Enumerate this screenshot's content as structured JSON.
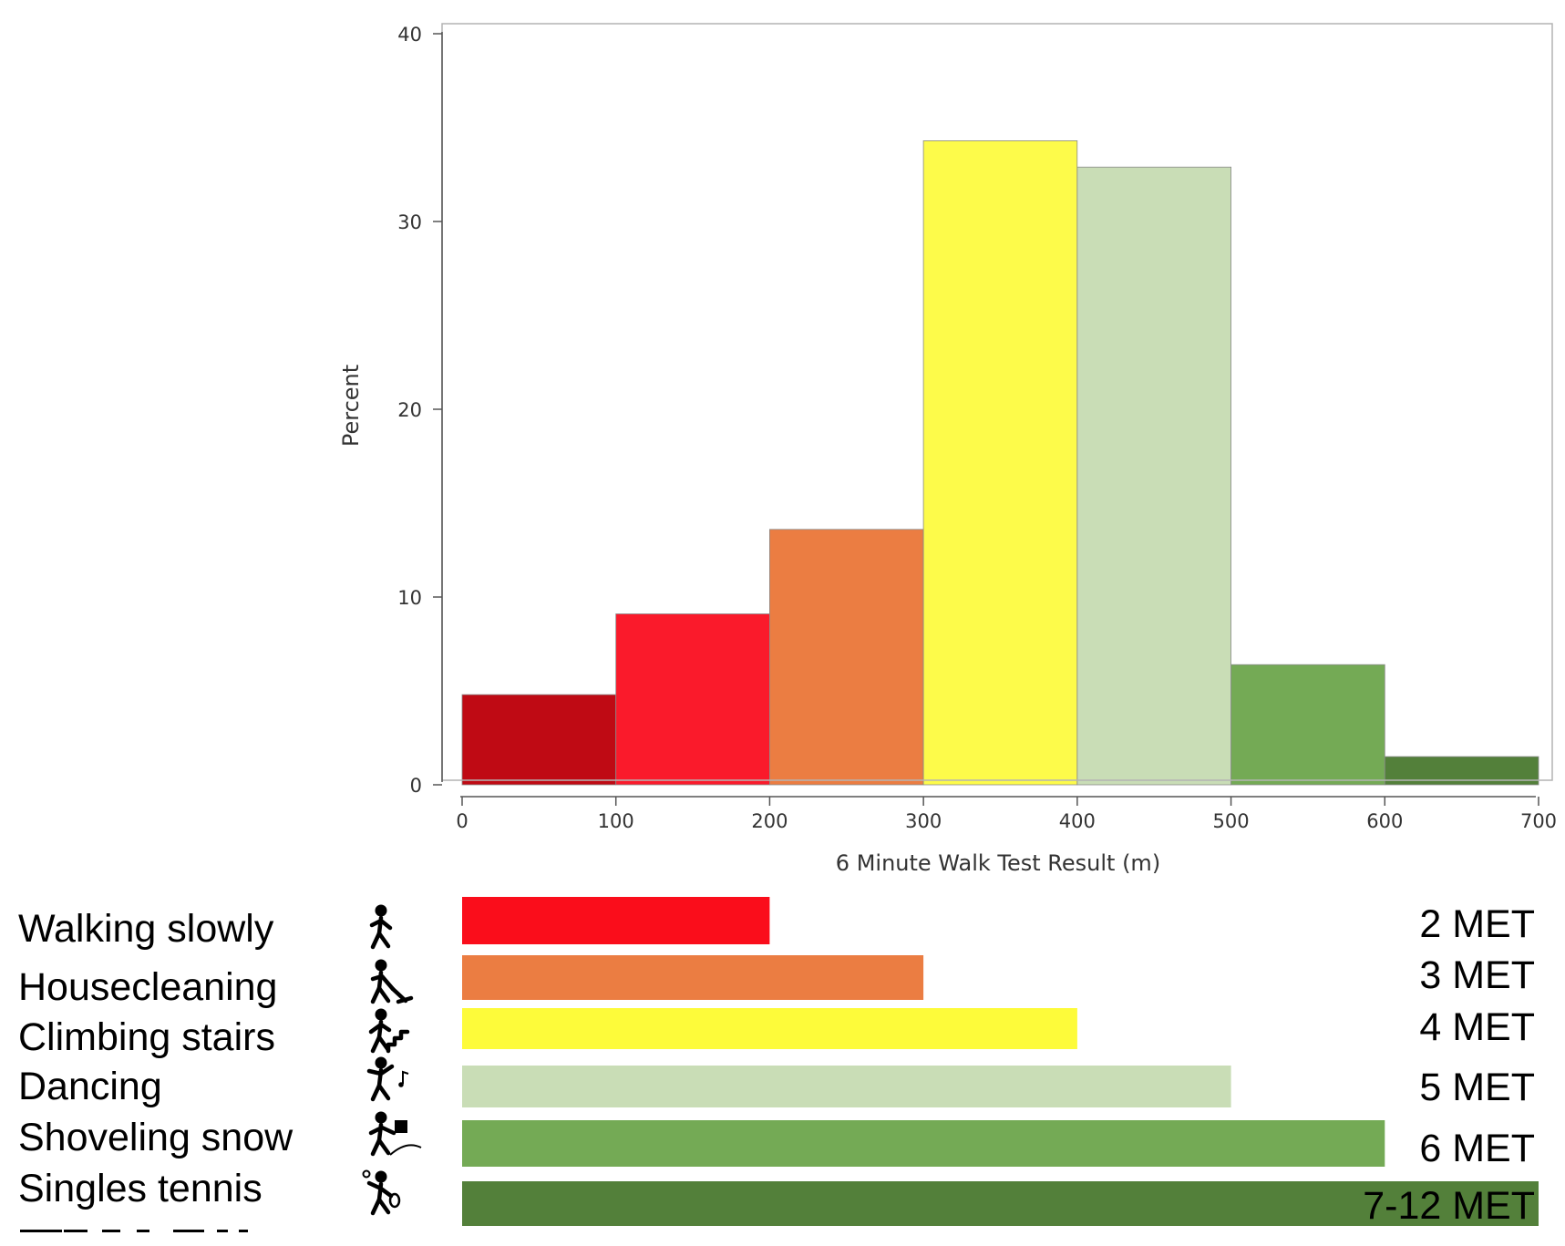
{
  "chart_data": [
    {
      "type": "bar",
      "title": "",
      "xlabel": "6 Minute Walk Test Result (m)",
      "ylabel": "Percent",
      "xlim": [
        0,
        700
      ],
      "ylim": [
        0,
        40
      ],
      "x_ticks": [
        0,
        100,
        200,
        300,
        400,
        500,
        600,
        700
      ],
      "y_ticks": [
        0,
        10,
        20,
        30,
        40
      ],
      "grid": false,
      "bins": [
        {
          "start": 0,
          "end": 100,
          "value": 4.8,
          "color": "#bf0a14"
        },
        {
          "start": 100,
          "end": 200,
          "value": 9.1,
          "color": "#fa1a2b"
        },
        {
          "start": 200,
          "end": 300,
          "value": 13.6,
          "color": "#eb7d42"
        },
        {
          "start": 300,
          "end": 400,
          "value": 34.3,
          "color": "#fdfb4a"
        },
        {
          "start": 400,
          "end": 500,
          "value": 32.9,
          "color": "#c9ddb6"
        },
        {
          "start": 500,
          "end": 600,
          "value": 6.4,
          "color": "#74aa55"
        },
        {
          "start": 600,
          "end": 700,
          "value": 1.5,
          "color": "#53803a"
        }
      ]
    },
    {
      "type": "bar",
      "orientation": "horizontal",
      "xlim": [
        0,
        700
      ],
      "items": [
        {
          "activity": "Walking slowly",
          "icon": "walking-person-icon",
          "end": 200,
          "met": "2 MET",
          "color": "#fa0d1b"
        },
        {
          "activity": "Housecleaning",
          "icon": "housecleaning-person-icon",
          "end": 300,
          "met": "3 MET",
          "color": "#eb7d42"
        },
        {
          "activity": "Climbing stairs",
          "icon": "stair-climbing-person-icon",
          "end": 400,
          "met": "4 MET",
          "color": "#fdfb3a"
        },
        {
          "activity": "Dancing",
          "icon": "dancing-person-icon",
          "end": 500,
          "met": "5 MET",
          "color": "#c9ddb6"
        },
        {
          "activity": "Shoveling snow",
          "icon": "shoveling-person-icon",
          "end": 600,
          "met": "6 MET",
          "color": "#74aa55"
        },
        {
          "activity": "Singles tennis",
          "icon": "tennis-player-icon",
          "end": 700,
          "met": "7-12 MET",
          "color": "#53803a"
        }
      ]
    }
  ]
}
